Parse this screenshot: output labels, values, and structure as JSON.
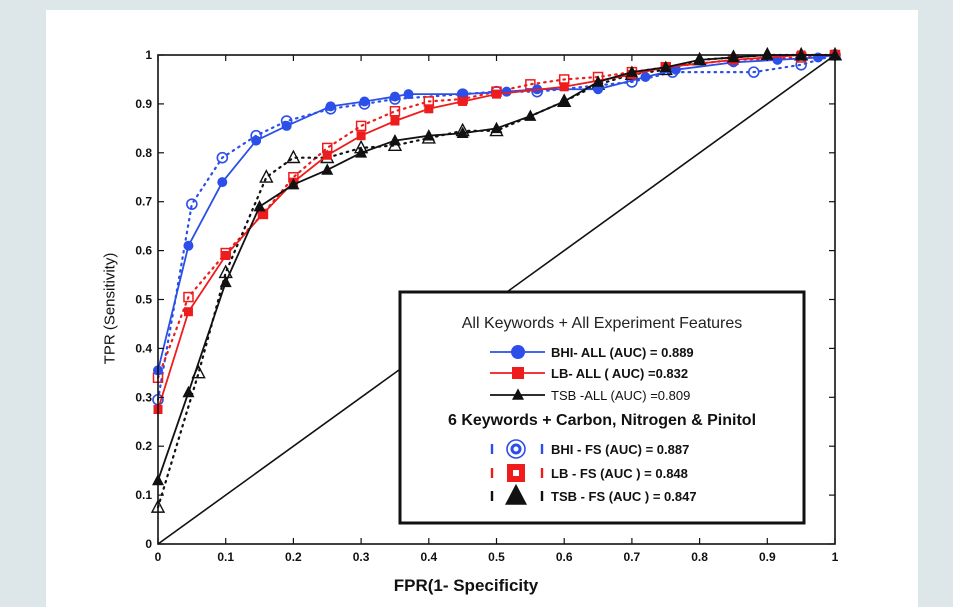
{
  "chart_data": {
    "type": "line",
    "title": "",
    "xlabel": "FPR(1- Specificity",
    "ylabel": "TPR  (Sensitivity)",
    "xlim": [
      0,
      1
    ],
    "ylim": [
      0,
      1
    ],
    "x_ticks": [
      "0",
      "0.1",
      "0.2",
      "0.3",
      "0.4",
      "0.5",
      "0.6",
      "0.7",
      "0.8",
      "0.9",
      "1"
    ],
    "y_ticks": [
      "0",
      "0.1",
      "0.2",
      "0.3",
      "0.4",
      "0.5",
      "0.6",
      "0.7",
      "0.8",
      "0.9",
      "1"
    ],
    "grid": false,
    "legend_position": "lower-right",
    "legend_heading_1": "All Keywords + All Experiment Features",
    "legend_heading_2": "6 Keywords + Carbon, Nitrogen & Pinitol",
    "reference_line": {
      "x": [
        0,
        1
      ],
      "y": [
        0,
        1
      ]
    },
    "series": [
      {
        "name": "BHI- ALL  (AUC) = 0.889",
        "group": 1,
        "color": "#2b4fe8",
        "marker": "circle-filled",
        "line": "solid",
        "x": [
          0,
          0.045,
          0.095,
          0.145,
          0.19,
          0.255,
          0.305,
          0.35,
          0.37,
          0.45,
          0.515,
          0.56,
          0.65,
          0.72,
          0.765,
          0.85,
          0.915,
          0.975,
          1.0
        ],
        "y": [
          0.355,
          0.61,
          0.74,
          0.825,
          0.855,
          0.895,
          0.905,
          0.915,
          0.92,
          0.92,
          0.925,
          0.93,
          0.93,
          0.955,
          0.97,
          0.985,
          0.99,
          0.995,
          1.0
        ]
      },
      {
        "name": "LB- ALL    ( AUC) =0.832",
        "group": 1,
        "color": "#ee1c1c",
        "marker": "square-filled",
        "line": "solid",
        "x": [
          0,
          0.045,
          0.1,
          0.155,
          0.2,
          0.25,
          0.3,
          0.35,
          0.4,
          0.45,
          0.5,
          0.6,
          0.7,
          0.75,
          0.85,
          0.95,
          1.0
        ],
        "y": [
          0.275,
          0.475,
          0.59,
          0.675,
          0.74,
          0.795,
          0.835,
          0.865,
          0.89,
          0.905,
          0.92,
          0.935,
          0.96,
          0.975,
          0.99,
          1.0,
          1.0
        ]
      },
      {
        "name": "TSB -ALL (AUC) =0.809",
        "group": 1,
        "color": "#111111",
        "marker": "triangle-filled",
        "line": "solid",
        "x": [
          0,
          0.045,
          0.1,
          0.15,
          0.2,
          0.25,
          0.3,
          0.35,
          0.4,
          0.45,
          0.5,
          0.55,
          0.6,
          0.65,
          0.7,
          0.75,
          0.8,
          0.85,
          0.9,
          0.95,
          1.0
        ],
        "y": [
          0.13,
          0.31,
          0.535,
          0.69,
          0.735,
          0.765,
          0.8,
          0.825,
          0.835,
          0.84,
          0.85,
          0.875,
          0.905,
          0.945,
          0.965,
          0.975,
          0.99,
          0.995,
          1.0,
          1.0,
          1.0
        ]
      },
      {
        "name": "BHI - FS    (AUC) = 0.887",
        "group": 2,
        "color": "#2b4fe8",
        "marker": "circle-open",
        "line": "dotted",
        "x": [
          0,
          0.05,
          0.095,
          0.145,
          0.19,
          0.255,
          0.305,
          0.35,
          0.45,
          0.5,
          0.56,
          0.7,
          0.76,
          0.88,
          0.95,
          1.0
        ],
        "y": [
          0.295,
          0.695,
          0.79,
          0.835,
          0.865,
          0.89,
          0.9,
          0.91,
          0.92,
          0.925,
          0.925,
          0.945,
          0.965,
          0.965,
          0.98,
          1.0
        ]
      },
      {
        "name": "LB - FS      (AUC ) = 0.848",
        "group": 2,
        "color": "#ee1c1c",
        "marker": "square-open",
        "line": "dotted",
        "x": [
          0,
          0.045,
          0.1,
          0.155,
          0.2,
          0.25,
          0.3,
          0.35,
          0.4,
          0.45,
          0.5,
          0.55,
          0.6,
          0.65,
          0.7,
          0.75,
          0.85,
          0.95,
          1.0
        ],
        "y": [
          0.34,
          0.505,
          0.595,
          0.675,
          0.75,
          0.81,
          0.855,
          0.885,
          0.905,
          0.91,
          0.925,
          0.94,
          0.95,
          0.955,
          0.965,
          0.975,
          0.99,
          0.995,
          1.0
        ]
      },
      {
        "name": "TSB - FS    (AUC ) = 0.847",
        "group": 2,
        "color": "#111111",
        "marker": "triangle-open",
        "line": "dotted",
        "x": [
          0,
          0.06,
          0.1,
          0.16,
          0.2,
          0.25,
          0.3,
          0.35,
          0.4,
          0.45,
          0.5,
          0.6,
          0.65,
          0.7,
          0.75,
          0.8,
          0.85,
          0.9,
          0.95,
          1.0
        ],
        "y": [
          0.075,
          0.35,
          0.555,
          0.75,
          0.79,
          0.79,
          0.81,
          0.815,
          0.83,
          0.845,
          0.845,
          0.905,
          0.94,
          0.96,
          0.97,
          0.99,
          0.995,
          1.0,
          1.0,
          1.0
        ]
      }
    ]
  }
}
